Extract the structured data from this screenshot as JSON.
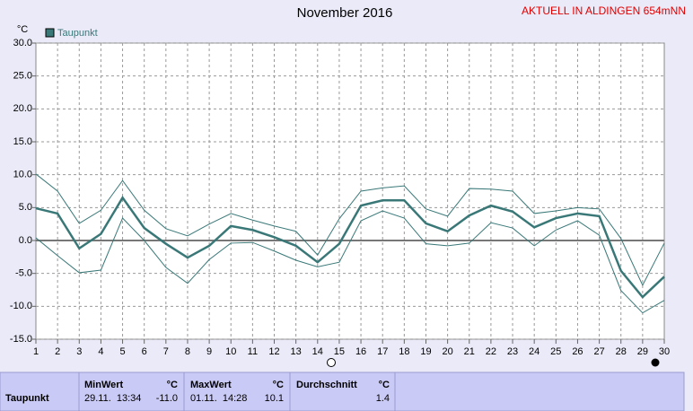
{
  "chart_data": {
    "type": "line",
    "title": "November 2016",
    "subtitle": "AKTUELL IN ALDINGEN 654mNN",
    "y_label": "°C",
    "x": [
      1,
      2,
      3,
      4,
      5,
      6,
      7,
      8,
      9,
      10,
      11,
      12,
      13,
      14,
      15,
      16,
      17,
      18,
      19,
      20,
      21,
      22,
      23,
      24,
      25,
      26,
      27,
      28,
      29,
      30
    ],
    "xlim": [
      1,
      30
    ],
    "xticks": [
      1,
      2,
      3,
      4,
      5,
      6,
      7,
      8,
      9,
      10,
      11,
      12,
      13,
      14,
      15,
      16,
      17,
      18,
      19,
      20,
      21,
      22,
      23,
      24,
      25,
      26,
      27,
      28,
      29,
      30
    ],
    "ylim": [
      -15,
      30
    ],
    "yticks": [
      {
        "value": -15,
        "label": "-15.0"
      },
      {
        "value": -10,
        "label": "-10.0"
      },
      {
        "value": -5,
        "label": "-5.0"
      },
      {
        "value": 0,
        "label": "0.0"
      },
      {
        "value": 5,
        "label": "5.0"
      },
      {
        "value": 10,
        "label": "10.0"
      },
      {
        "value": 15,
        "label": "15.0"
      },
      {
        "value": 20,
        "label": "20.0"
      },
      {
        "value": 25,
        "label": "25.0"
      },
      {
        "value": 30,
        "label": "30.0"
      }
    ],
    "grid": true,
    "legend": "top-left",
    "series": [
      {
        "name": "Taupunkt",
        "color": "#3a7878",
        "values": [
          4.9,
          4.1,
          -1.2,
          1.0,
          6.5,
          1.9,
          -0.5,
          -2.6,
          -0.8,
          2.2,
          1.6,
          0.5,
          -0.8,
          -3.3,
          -0.5,
          5.3,
          6.1,
          6.1,
          2.6,
          1.4,
          3.8,
          5.3,
          4.4,
          2.0,
          3.4,
          4.1,
          3.7,
          -4.6,
          -8.6,
          -5.5
        ]
      },
      {
        "color": "#3a7878",
        "values": [
          10.1,
          7.5,
          2.6,
          4.6,
          9.1,
          4.6,
          1.8,
          0.7,
          2.5,
          4.1,
          3.1,
          2.2,
          1.4,
          -2.2,
          3.3,
          7.5,
          8.0,
          8.3,
          4.8,
          3.7,
          7.9,
          7.8,
          7.5,
          4.1,
          4.5,
          5.0,
          4.8,
          0.3,
          -6.8,
          -0.4
        ]
      },
      {
        "color": "#3a7878",
        "values": [
          0.4,
          -2.3,
          -4.9,
          -4.5,
          3.4,
          0.0,
          -4.1,
          -6.5,
          -2.9,
          -0.4,
          -0.3,
          -1.6,
          -3.0,
          -4.0,
          -3.3,
          3.0,
          4.5,
          3.4,
          -0.5,
          -0.8,
          -0.4,
          2.7,
          1.9,
          -0.8,
          1.6,
          3.0,
          0.8,
          -7.6,
          -11.0,
          -9.1
        ]
      }
    ]
  },
  "summary": {
    "row_label": "Taupunkt",
    "min": {
      "header": "MinWert",
      "unit": "°C",
      "time": "29.11.  13:34",
      "value": "-11.0"
    },
    "max": {
      "header": "MaxWert",
      "unit": "°C",
      "time": "01.11.  14:28",
      "value": "10.1"
    },
    "avg": {
      "header": "Durchschnitt",
      "unit": "°C",
      "value": "1.4"
    }
  }
}
